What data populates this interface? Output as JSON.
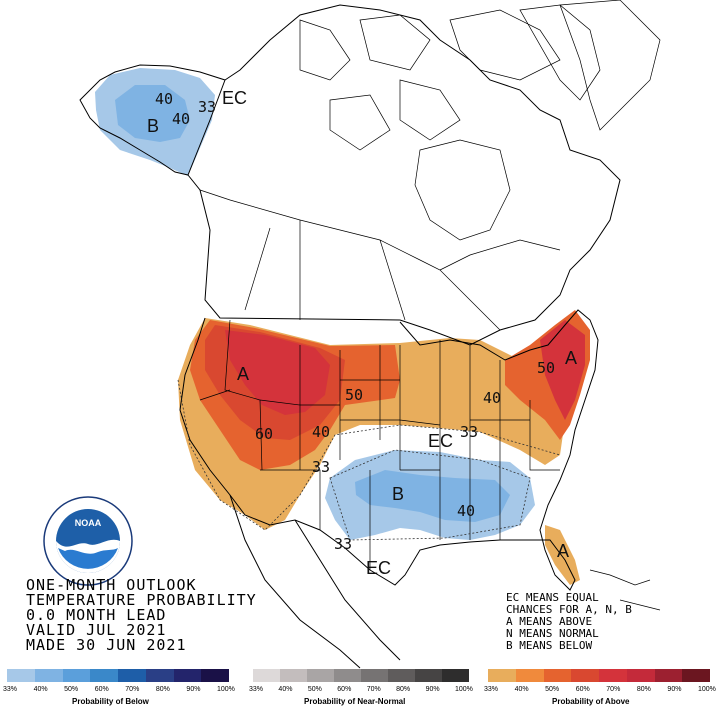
{
  "title": {
    "line1": "ONE-MONTH OUTLOOK",
    "line2": "TEMPERATURE PROBABILITY",
    "line3": "0.0 MONTH LEAD",
    "line4": "VALID JUL 2021",
    "line5": "MADE 30 JUN 2021"
  },
  "ec_note": {
    "line1": "EC MEANS EQUAL",
    "line2": "CHANCES FOR A, N, B",
    "line3": "A MEANS ABOVE",
    "line4": "N MEANS NORMAL",
    "line5": "B MEANS BELOW"
  },
  "map_labels": {
    "ec_alaska": "EC",
    "ec_central": "EC",
    "ec_texas": "EC",
    "a_west": "A",
    "a_northeast": "A",
    "a_florida": "A",
    "b_alaska": "B",
    "b_south": "B",
    "c40_ak_a": "40",
    "c40_ak_b": "40",
    "c33_ak": "33",
    "c50_plains": "50",
    "c60_west": "60",
    "c40_west": "40",
    "c33_west": "33",
    "c50_ne": "50",
    "c40_ne": "40",
    "c33_central": "33",
    "c40_south": "40",
    "c33_south": "33"
  },
  "legend": {
    "below": {
      "caption": "Probability of Below",
      "colors": [
        "#a6c8e8",
        "#7fb3e3",
        "#5b9fdb",
        "#3a88c9",
        "#1e5ea8",
        "#2a3f86",
        "#23246b",
        "#1a1147"
      ],
      "ticks": [
        "33%",
        "40%",
        "50%",
        "60%",
        "70%",
        "80%",
        "90%",
        "100%"
      ]
    },
    "normal": {
      "caption": "Probability of Near-Normal",
      "colors": [
        "#ddd9d9",
        "#c3bdbd",
        "#a9a5a5",
        "#8f8c8c",
        "#767373",
        "#5f5c5c",
        "#464444",
        "#2e2d2d"
      ],
      "ticks": [
        "33%",
        "40%",
        "50%",
        "60%",
        "70%",
        "80%",
        "90%",
        "100%"
      ]
    },
    "above": {
      "caption": "Probability of Above",
      "colors": [
        "#e8ad5c",
        "#f08a3c",
        "#e5632f",
        "#d94830",
        "#d4333b",
        "#c42a3a",
        "#9c2030",
        "#6b1620"
      ],
      "ticks": [
        "33%",
        "40%",
        "50%",
        "60%",
        "70%",
        "80%",
        "90%",
        "100%"
      ]
    }
  },
  "logo": {
    "name": "NOAA"
  }
}
